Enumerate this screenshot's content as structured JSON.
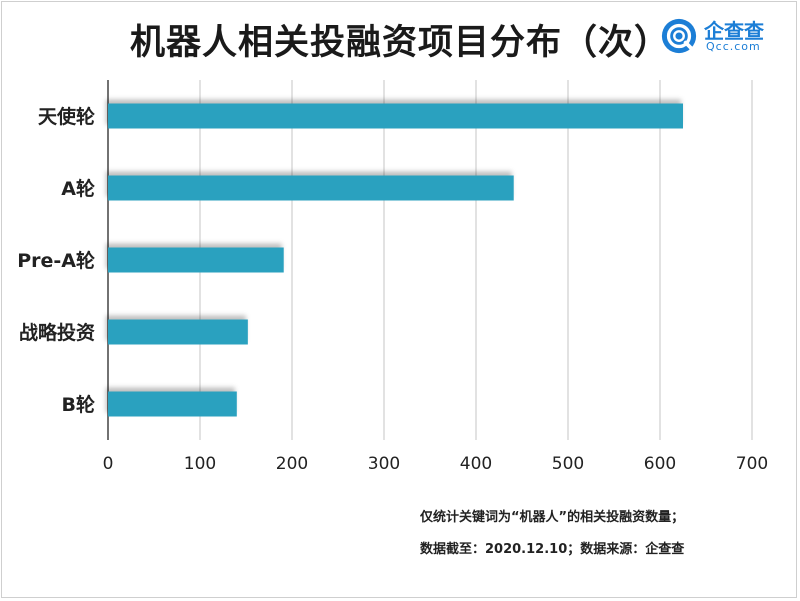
{
  "title": "机器人相关投融资项目分布（次）",
  "logo": {
    "name": "企查查",
    "domain": "Qcc.com"
  },
  "colors": {
    "bar": "#2ba1bf",
    "grid": "#d9d9d9",
    "axis": "#444444",
    "text": "#222222"
  },
  "chart_data": {
    "type": "bar",
    "orientation": "horizontal",
    "title": "机器人相关投融资项目分布（次）",
    "categories": [
      "天使轮",
      "A轮",
      "Pre-A轮",
      "战略投资",
      "B轮"
    ],
    "values": [
      625,
      441,
      191,
      152,
      140
    ],
    "xlim": [
      0,
      700
    ],
    "xticks": [
      "0",
      "100",
      "200",
      "300",
      "400",
      "500",
      "600",
      "700"
    ],
    "xtick_values": [
      0,
      100,
      200,
      300,
      400,
      500,
      600,
      700
    ],
    "grid": true,
    "xlabel": "",
    "ylabel": ""
  },
  "footnotes": [
    "仅统计关键词为“机器人”的相关投融资数量；",
    "数据截至：2020.12.10；数据来源：企查查"
  ]
}
